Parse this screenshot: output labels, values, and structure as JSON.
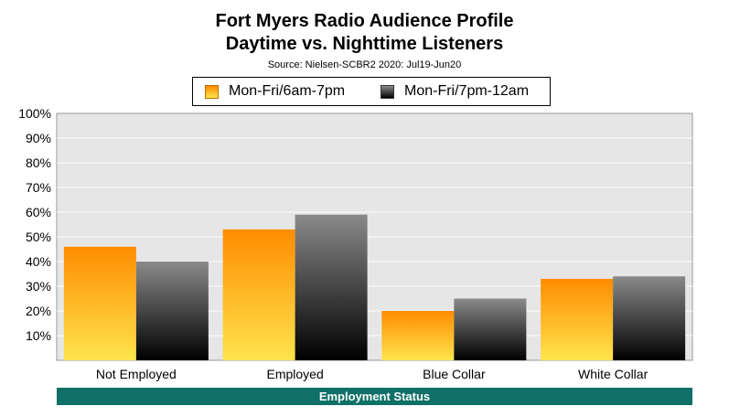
{
  "header": {
    "title_line1": "Fort Myers Radio Audience Profile",
    "title_line2": "Daytime vs. Nighttime Listeners",
    "source": "Source: Nielsen-SCBR2 2020: Jul19-Jun20"
  },
  "legend": {
    "items": [
      "Mon-Fri/6am-7pm",
      "Mon-Fri/7pm-12am"
    ]
  },
  "banner": {
    "label": "Employment Status"
  },
  "colors": {
    "daytime_top": "#ff8c00",
    "daytime_bottom": "#ffe44d",
    "nighttime_top": "#8a8a8a",
    "nighttime_bottom": "#000000",
    "plot_background": "#e6e6e6",
    "banner": "#0f7068"
  },
  "chart_data": {
    "type": "bar",
    "title": "Fort Myers Radio Audience Profile Daytime vs. Nighttime Listeners",
    "subtitle": "Source: Nielsen-SCBR2 2020: Jul19-Jun20",
    "categories": [
      "Not Employed",
      "Employed",
      "Blue Collar",
      "White Collar"
    ],
    "series": [
      {
        "name": "Mon-Fri/6am-7pm",
        "values": [
          46,
          53,
          20,
          33
        ]
      },
      {
        "name": "Mon-Fri/7pm-12am",
        "values": [
          40,
          59,
          25,
          34
        ]
      }
    ],
    "xlabel": "Employment Status",
    "ylabel": "",
    "ylim": [
      0,
      100
    ],
    "yticks": [
      "10%",
      "20%",
      "30%",
      "40%",
      "50%",
      "60%",
      "70%",
      "80%",
      "90%",
      "100%"
    ],
    "grid": true,
    "legend_position": "top"
  }
}
